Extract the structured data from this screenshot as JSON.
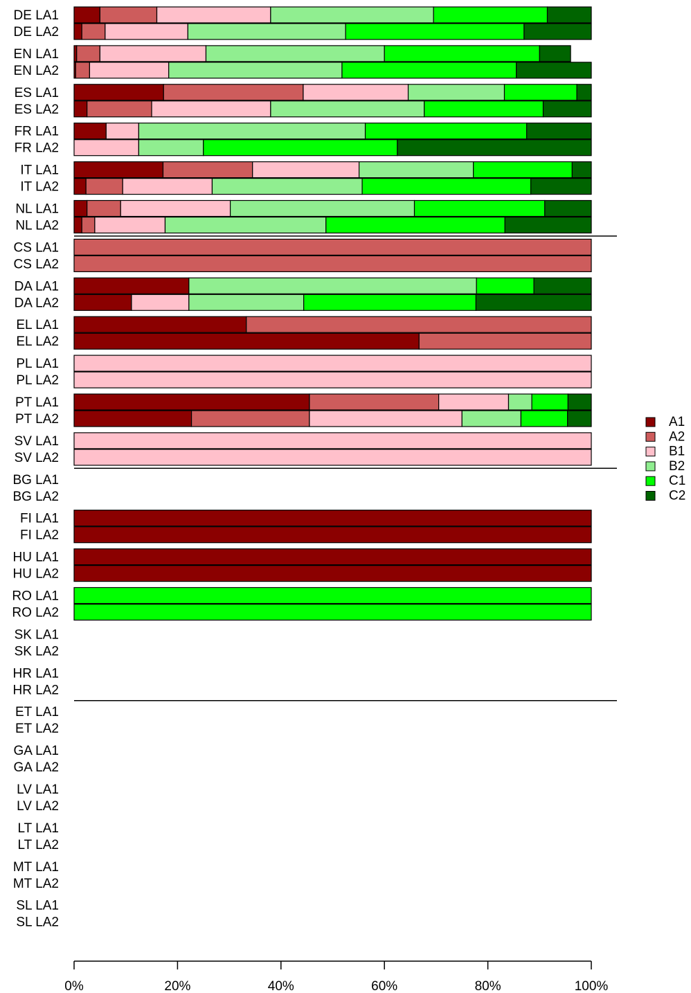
{
  "chart_data": {
    "type": "bar",
    "stacked": true,
    "orientation": "horizontal",
    "xlim": [
      0,
      100
    ],
    "xticks": [
      "0%",
      "20%",
      "40%",
      "60%",
      "80%",
      "100%"
    ],
    "legend_position": "right",
    "series": [
      {
        "name": "A1",
        "color": "#8B0000"
      },
      {
        "name": "A2",
        "color": "#CD5C5C"
      },
      {
        "name": "B1",
        "color": "#FFC0CB"
      },
      {
        "name": "B2",
        "color": "#90EE90"
      },
      {
        "name": "C1",
        "color": "#00FF00"
      },
      {
        "name": "C2",
        "color": "#006400"
      }
    ],
    "groups": [
      {
        "name": "DE",
        "rows": [
          {
            "label": "DE LA1",
            "values": [
              5,
              11,
              22,
              31.5,
              22,
              8.5
            ]
          },
          {
            "label": "DE LA2",
            "values": [
              1.5,
              4.5,
              16,
              30.5,
              34.5,
              13
            ]
          }
        ]
      },
      {
        "name": "EN",
        "rows": [
          {
            "label": "EN LA1",
            "values": [
              0.5,
              4.5,
              20.5,
              34.5,
              30,
              6
            ]
          },
          {
            "label": "EN LA2",
            "values": [
              0.3,
              2.7,
              15.3,
              33.5,
              33.7,
              14.5
            ]
          }
        ]
      },
      {
        "name": "ES",
        "rows": [
          {
            "label": "ES LA1",
            "values": [
              17.3,
              27,
              20.3,
              18.6,
              14,
              2.8
            ]
          },
          {
            "label": "ES LA2",
            "values": [
              2.5,
              12.5,
              23,
              29.7,
              23,
              9.3
            ]
          }
        ]
      },
      {
        "name": "FR",
        "rows": [
          {
            "label": "FR LA1",
            "values": [
              6.2,
              0,
              6.3,
              43.8,
              31.2,
              12.5
            ]
          },
          {
            "label": "FR LA2",
            "values": [
              0,
              0,
              12.5,
              12.5,
              37.5,
              37.5
            ]
          }
        ]
      },
      {
        "name": "IT",
        "rows": [
          {
            "label": "IT LA1",
            "values": [
              17.2,
              17.3,
              20.6,
              22.1,
              19.1,
              3.7
            ]
          },
          {
            "label": "IT LA2",
            "values": [
              2.3,
              7.1,
              17.3,
              29,
              32.6,
              11.7
            ]
          }
        ]
      },
      {
        "name": "NL",
        "rows": [
          {
            "label": "NL LA1",
            "values": [
              2.5,
              6.5,
              21.2,
              35.6,
              25.2,
              9
            ]
          },
          {
            "label": "NL LA2",
            "values": [
              1.5,
              2.5,
              13.6,
              31.1,
              34.6,
              16.7
            ]
          }
        ]
      },
      {
        "name": "CS",
        "rows": [
          {
            "label": "CS LA1",
            "values": [
              0,
              100,
              0,
              0,
              0,
              0
            ]
          },
          {
            "label": "CS LA2",
            "values": [
              0,
              100,
              0,
              0,
              0,
              0
            ]
          }
        ]
      },
      {
        "name": "DA",
        "rows": [
          {
            "label": "DA LA1",
            "values": [
              22.2,
              0,
              0,
              55.6,
              11.1,
              11.1
            ]
          },
          {
            "label": "DA LA2",
            "values": [
              11.1,
              0,
              11.1,
              22.2,
              33.3,
              22.3
            ]
          }
        ]
      },
      {
        "name": "EL",
        "rows": [
          {
            "label": "EL LA1",
            "values": [
              33.3,
              66.7,
              0,
              0,
              0,
              0
            ]
          },
          {
            "label": "EL LA2",
            "values": [
              66.7,
              33.3,
              0,
              0,
              0,
              0
            ]
          }
        ]
      },
      {
        "name": "PL",
        "rows": [
          {
            "label": "PL LA1",
            "values": [
              0,
              0,
              100,
              0,
              0,
              0
            ]
          },
          {
            "label": "PL LA2",
            "values": [
              0,
              0,
              100,
              0,
              0,
              0
            ]
          }
        ]
      },
      {
        "name": "PT",
        "rows": [
          {
            "label": "PT LA1",
            "values": [
              45.5,
              25,
              13.5,
              4.5,
              7,
              4.5
            ]
          },
          {
            "label": "PT LA2",
            "values": [
              22.7,
              22.8,
              29.5,
              11.4,
              9,
              4.6
            ]
          }
        ]
      },
      {
        "name": "SV",
        "rows": [
          {
            "label": "SV LA1",
            "values": [
              0,
              0,
              100,
              0,
              0,
              0
            ]
          },
          {
            "label": "SV LA2",
            "values": [
              0,
              0,
              100,
              0,
              0,
              0
            ]
          }
        ]
      },
      {
        "name": "BG",
        "rows": [
          {
            "label": "BG LA1",
            "values": []
          },
          {
            "label": "BG LA2",
            "values": []
          }
        ]
      },
      {
        "name": "FI",
        "rows": [
          {
            "label": "FI LA1",
            "values": [
              100,
              0,
              0,
              0,
              0,
              0
            ]
          },
          {
            "label": "FI LA2",
            "values": [
              100,
              0,
              0,
              0,
              0,
              0
            ]
          }
        ]
      },
      {
        "name": "HU",
        "rows": [
          {
            "label": "HU LA1",
            "values": [
              100,
              0,
              0,
              0,
              0,
              0
            ]
          },
          {
            "label": "HU LA2",
            "values": [
              100,
              0,
              0,
              0,
              0,
              0
            ]
          }
        ]
      },
      {
        "name": "RO",
        "rows": [
          {
            "label": "RO LA1",
            "values": [
              0,
              0,
              0,
              0,
              100,
              0
            ]
          },
          {
            "label": "RO LA2",
            "values": [
              0,
              0,
              0,
              0,
              100,
              0
            ]
          }
        ]
      },
      {
        "name": "SK",
        "rows": [
          {
            "label": "SK LA1",
            "values": []
          },
          {
            "label": "SK LA2",
            "values": []
          }
        ]
      },
      {
        "name": "HR",
        "rows": [
          {
            "label": "HR LA1",
            "values": []
          },
          {
            "label": "HR LA2",
            "values": []
          }
        ]
      },
      {
        "name": "ET",
        "rows": [
          {
            "label": "ET LA1",
            "values": []
          },
          {
            "label": "ET LA2",
            "values": []
          }
        ]
      },
      {
        "name": "GA",
        "rows": [
          {
            "label": "GA LA1",
            "values": []
          },
          {
            "label": "GA LA2",
            "values": []
          }
        ]
      },
      {
        "name": "LV",
        "rows": [
          {
            "label": "LV LA1",
            "values": []
          },
          {
            "label": "LV LA2",
            "values": []
          }
        ]
      },
      {
        "name": "LT",
        "rows": [
          {
            "label": "LT LA1",
            "values": []
          },
          {
            "label": "LT LA2",
            "values": []
          }
        ]
      },
      {
        "name": "MT",
        "rows": [
          {
            "label": "MT LA1",
            "values": []
          },
          {
            "label": "MT LA2",
            "values": []
          }
        ]
      },
      {
        "name": "SL",
        "rows": [
          {
            "label": "SL LA1",
            "values": []
          },
          {
            "label": "SL LA2",
            "values": []
          }
        ]
      }
    ],
    "separators_after_group": [
      5,
      11,
      17
    ]
  }
}
